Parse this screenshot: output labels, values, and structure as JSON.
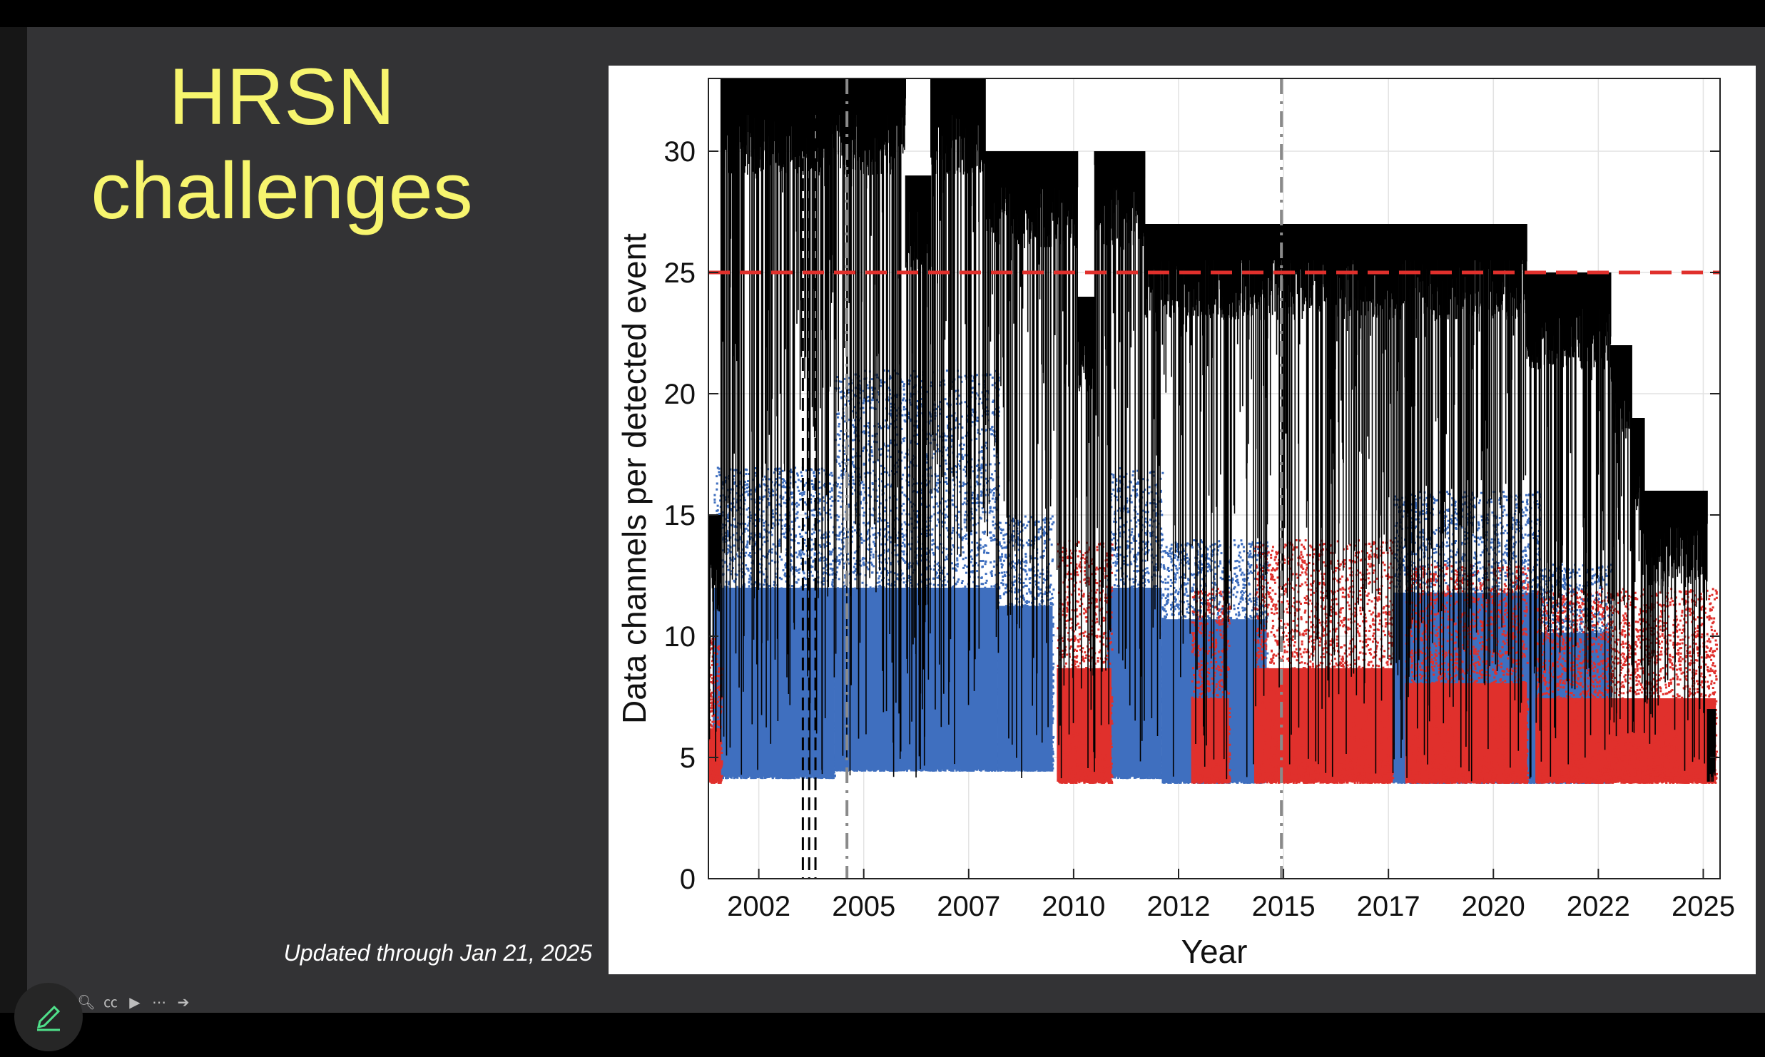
{
  "slide": {
    "title_line1": "HRSN",
    "title_line2": "challenges",
    "updated_note": "Updated through Jan 21, 2025"
  },
  "toolbar": {
    "icons": [
      "zoom-icon",
      "captions-icon",
      "video-icon",
      "more-icon",
      "next-icon"
    ],
    "pen_icon": "pen-icon"
  },
  "colors": {
    "title": "#f7f56e",
    "slide_bg": "#333335",
    "blue_series": "#3f6fbf",
    "red_series": "#e0302c",
    "black_series": "#000000",
    "threshold_line": "#e0302c"
  },
  "chart_data": {
    "type": "scatter",
    "title": "",
    "xlabel": "Year",
    "ylabel": "Data channels per detected event",
    "xlim": [
      2001.0,
      2025.1
    ],
    "ylim": [
      0,
      33
    ],
    "xticks": [
      "2002",
      "2005",
      "2007",
      "2010",
      "2012",
      "2015",
      "2017",
      "2020",
      "2022",
      "2025"
    ],
    "xtick_values": [
      2002.2,
      2004.7,
      2007.2,
      2009.7,
      2012.2,
      2014.7,
      2017.2,
      2019.7,
      2022.2,
      2024.7
    ],
    "yticks": [
      0,
      5,
      10,
      15,
      20,
      25,
      30
    ],
    "grid": true,
    "threshold": 25,
    "vlines_black": [
      2003.25,
      2003.4,
      2003.55
    ],
    "vlines_gray": [
      2004.3,
      2014.65
    ],
    "series": [
      {
        "color": "blue",
        "segments": [
          {
            "start": 2001.1,
            "end": 2004.0,
            "low": 4.2,
            "high": 17
          },
          {
            "start": 2004.0,
            "end": 2007.9,
            "low": 4.5,
            "high": 21
          },
          {
            "start": 2007.9,
            "end": 2009.2,
            "low": 4.5,
            "high": 15
          },
          {
            "start": 2010.5,
            "end": 2011.8,
            "low": 4.2,
            "high": 17
          },
          {
            "start": 2011.8,
            "end": 2014.3,
            "low": 4.0,
            "high": 14
          },
          {
            "start": 2017.3,
            "end": 2020.8,
            "low": 4.0,
            "high": 16
          },
          {
            "start": 2020.8,
            "end": 2022.5,
            "low": 4.0,
            "high": 13
          }
        ]
      },
      {
        "color": "red",
        "segments": [
          {
            "start": 2001.0,
            "end": 2001.3,
            "low": 4.0,
            "high": 10
          },
          {
            "start": 2009.3,
            "end": 2010.6,
            "low": 4.0,
            "high": 14
          },
          {
            "start": 2012.5,
            "end": 2013.4,
            "low": 4.0,
            "high": 12
          },
          {
            "start": 2014.0,
            "end": 2017.3,
            "low": 4.0,
            "high": 14
          },
          {
            "start": 2017.6,
            "end": 2020.5,
            "low": 4.0,
            "high": 13
          },
          {
            "start": 2020.7,
            "end": 2025.0,
            "low": 4.0,
            "high": 12
          }
        ]
      },
      {
        "color": "black",
        "envelope": [
          {
            "start": 2001.0,
            "end": 2001.3,
            "top": 15
          },
          {
            "start": 2001.3,
            "end": 2005.7,
            "top": 33
          },
          {
            "start": 2005.7,
            "end": 2006.3,
            "top": 29
          },
          {
            "start": 2006.3,
            "end": 2007.6,
            "top": 33
          },
          {
            "start": 2007.6,
            "end": 2009.3,
            "top": 30
          },
          {
            "start": 2009.3,
            "end": 2009.8,
            "top": 30
          },
          {
            "start": 2009.8,
            "end": 2010.2,
            "top": 24
          },
          {
            "start": 2010.2,
            "end": 2011.4,
            "top": 30
          },
          {
            "start": 2011.4,
            "end": 2020.5,
            "top": 27
          },
          {
            "start": 2020.5,
            "end": 2022.5,
            "top": 25
          },
          {
            "start": 2022.5,
            "end": 2023.0,
            "top": 22
          },
          {
            "start": 2023.0,
            "end": 2023.3,
            "top": 19
          },
          {
            "start": 2023.3,
            "end": 2024.2,
            "top": 16
          },
          {
            "start": 2024.2,
            "end": 2024.8,
            "top": 16
          },
          {
            "start": 2024.8,
            "end": 2025.0,
            "top": 7
          }
        ],
        "floor": 20
      }
    ]
  }
}
